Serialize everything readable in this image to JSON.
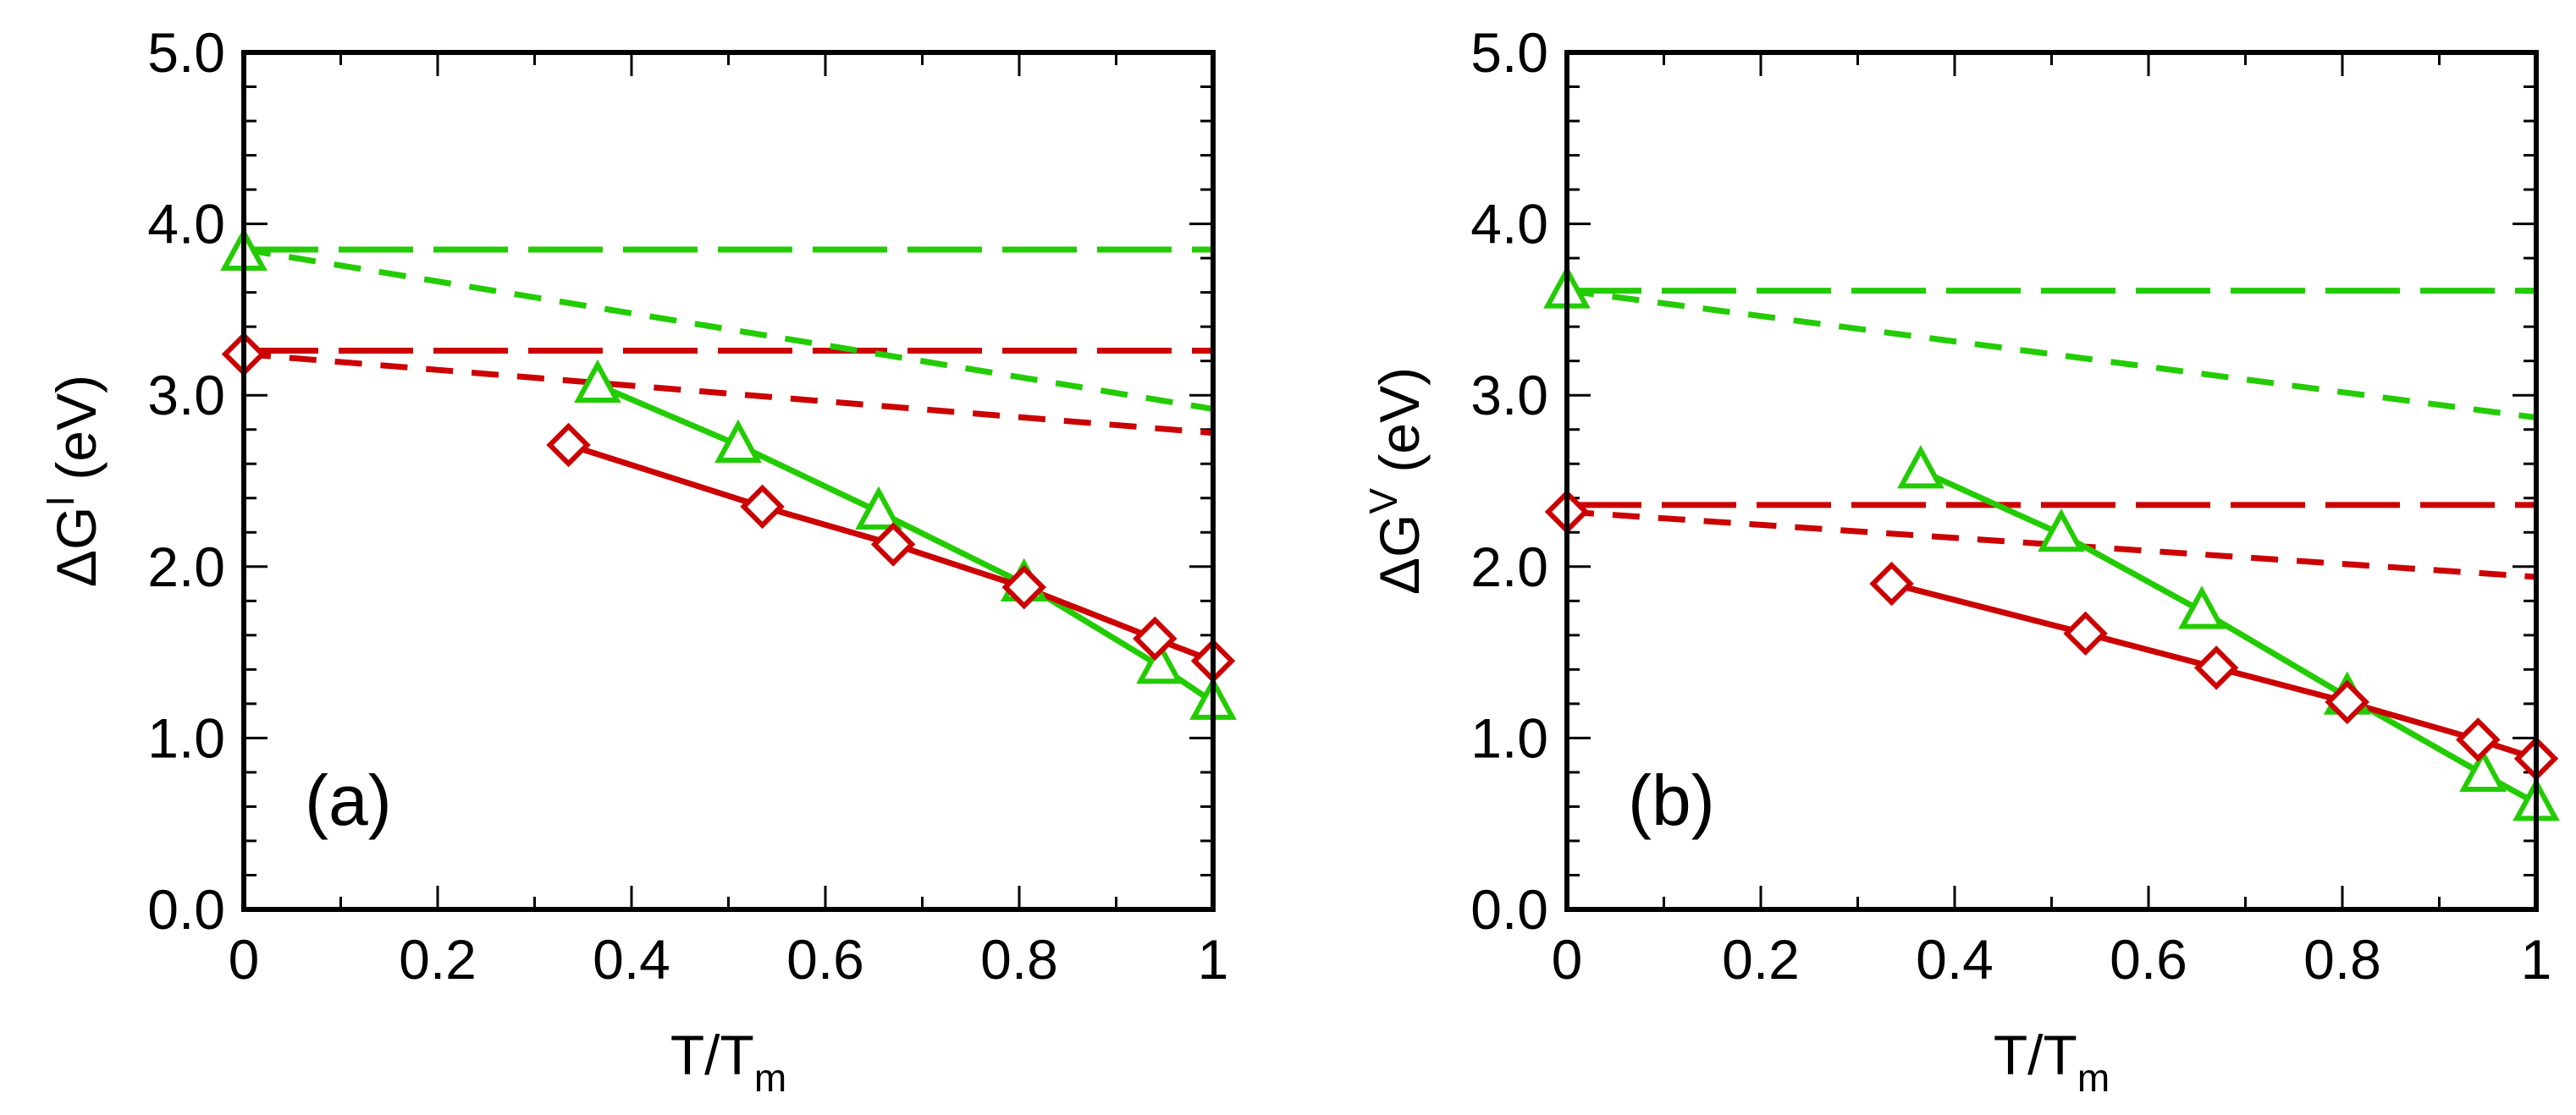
{
  "chart_data": [
    {
      "type": "line",
      "panel_label": "(a)",
      "xlabel": {
        "main": "T/T",
        "sub": "m"
      },
      "ylabel": {
        "pre": "ΔG",
        "sup": "I",
        "post": " (eV)"
      },
      "xlim": [
        0,
        1
      ],
      "ylim": [
        0,
        5
      ],
      "xticks": [
        "0",
        "0.2",
        "0.4",
        "0.6",
        "0.8",
        "1"
      ],
      "yticks": [
        "0.0",
        "1.0",
        "2.0",
        "3.0",
        "4.0",
        "5.0"
      ],
      "series": [
        {
          "name": "green-long-dash",
          "color": "#22cc00",
          "style": "long-dash",
          "x": [
            0,
            1
          ],
          "y": [
            3.85,
            3.85
          ]
        },
        {
          "name": "red-long-dash",
          "color": "#cc0000",
          "style": "long-dash",
          "x": [
            0,
            1
          ],
          "y": [
            3.26,
            3.26
          ]
        },
        {
          "name": "green-short-dash",
          "color": "#22cc00",
          "style": "short-dash",
          "x": [
            0,
            1
          ],
          "y": [
            3.85,
            2.92
          ]
        },
        {
          "name": "red-short-dash",
          "color": "#cc0000",
          "style": "short-dash",
          "x": [
            0,
            1
          ],
          "y": [
            3.24,
            2.78
          ]
        },
        {
          "name": "green-triangles",
          "color": "#22cc00",
          "style": "solid",
          "marker": "triangle",
          "x": [
            0.0,
            0.365,
            0.51,
            0.655,
            0.805,
            0.945,
            1.0
          ],
          "y": [
            3.83,
            3.06,
            2.71,
            2.32,
            1.9,
            1.42,
            1.21
          ],
          "connect_from": 1
        },
        {
          "name": "red-diamonds",
          "color": "#cc0000",
          "style": "solid",
          "marker": "diamond",
          "x": [
            0.0,
            0.335,
            0.535,
            0.67,
            0.805,
            0.94,
            1.0
          ],
          "y": [
            3.24,
            2.71,
            2.35,
            2.13,
            1.88,
            1.58,
            1.45
          ],
          "connect_from": 1
        }
      ]
    },
    {
      "type": "line",
      "panel_label": "(b)",
      "xlabel": {
        "main": "T/T",
        "sub": "m"
      },
      "ylabel": {
        "pre": "ΔG",
        "sup": "V",
        "post": " (eV)"
      },
      "xlim": [
        0,
        1
      ],
      "ylim": [
        0,
        5
      ],
      "xticks": [
        "0",
        "0.2",
        "0.4",
        "0.6",
        "0.8",
        "1"
      ],
      "yticks": [
        "0.0",
        "1.0",
        "2.0",
        "3.0",
        "4.0",
        "5.0"
      ],
      "series": [
        {
          "name": "green-long-dash",
          "color": "#22cc00",
          "style": "long-dash",
          "x": [
            0,
            1
          ],
          "y": [
            3.61,
            3.61
          ]
        },
        {
          "name": "red-long-dash",
          "color": "#cc0000",
          "style": "long-dash",
          "x": [
            0,
            1
          ],
          "y": [
            2.36,
            2.36
          ]
        },
        {
          "name": "green-short-dash",
          "color": "#22cc00",
          "style": "short-dash",
          "x": [
            0,
            1
          ],
          "y": [
            3.61,
            2.87
          ]
        },
        {
          "name": "red-short-dash",
          "color": "#cc0000",
          "style": "short-dash",
          "x": [
            0,
            1
          ],
          "y": [
            2.32,
            1.94
          ]
        },
        {
          "name": "green-triangles",
          "color": "#22cc00",
          "style": "solid",
          "marker": "triangle",
          "x": [
            0.0,
            0.365,
            0.51,
            0.655,
            0.805,
            0.945,
            1.0
          ],
          "y": [
            3.61,
            2.56,
            2.19,
            1.74,
            1.24,
            0.79,
            0.62
          ],
          "connect_from": 1
        },
        {
          "name": "red-diamonds",
          "color": "#cc0000",
          "style": "solid",
          "marker": "diamond",
          "x": [
            0.0,
            0.335,
            0.535,
            0.67,
            0.805,
            0.94,
            1.0
          ],
          "y": [
            2.32,
            1.9,
            1.61,
            1.41,
            1.21,
            0.99,
            0.88
          ],
          "connect_from": 1
        }
      ]
    }
  ]
}
